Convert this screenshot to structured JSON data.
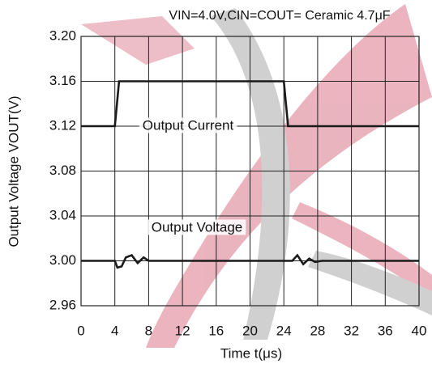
{
  "chart_data": {
    "type": "line",
    "title": "VIN=4.0V,CIN=COUT= Ceramic 4.7μF",
    "x_label": "Time t(μs)",
    "y_label": "Output Voltage VOUT(V)",
    "annotations": [
      "Output Current",
      "Output Voltage"
    ],
    "series": [
      {
        "name": "Output Current",
        "color": "#1a1a1a",
        "x": [
          0,
          4,
          4.5,
          24,
          24.5,
          40
        ],
        "values": [
          3.12,
          3.12,
          3.16,
          3.16,
          3.12,
          3.12
        ]
      },
      {
        "name": "Output Voltage",
        "color": "#1a1a1a",
        "x": [
          0,
          4,
          4.3,
          4.8,
          5.3,
          6,
          6.7,
          7.4,
          8,
          9,
          24,
          25,
          25.6,
          26.3,
          27,
          27.7,
          28.5,
          40
        ],
        "values": [
          3.0,
          3.0,
          2.994,
          2.995,
          3.003,
          3.005,
          2.998,
          3.003,
          3.0,
          3.0,
          3.0,
          3.0,
          3.005,
          2.997,
          3.002,
          2.999,
          3.0,
          3.0
        ]
      }
    ],
    "xlim": [
      0,
      40
    ],
    "xticks": [
      0,
      4,
      8,
      12,
      16,
      20,
      24,
      28,
      32,
      36,
      40
    ],
    "ylim": [
      2.96,
      3.2
    ],
    "yticks": [
      {
        "value": 2.96,
        "label": "2.96"
      },
      {
        "value": 3.0,
        "label": "3.00"
      },
      {
        "value": 3.04,
        "label": "3.04"
      },
      {
        "value": 3.08,
        "label": "3.08"
      },
      {
        "value": 3.12,
        "label": "3.12"
      },
      {
        "value": 3.16,
        "label": "3.16"
      },
      {
        "value": 3.2,
        "label": "3.20"
      }
    ],
    "grid": true
  }
}
